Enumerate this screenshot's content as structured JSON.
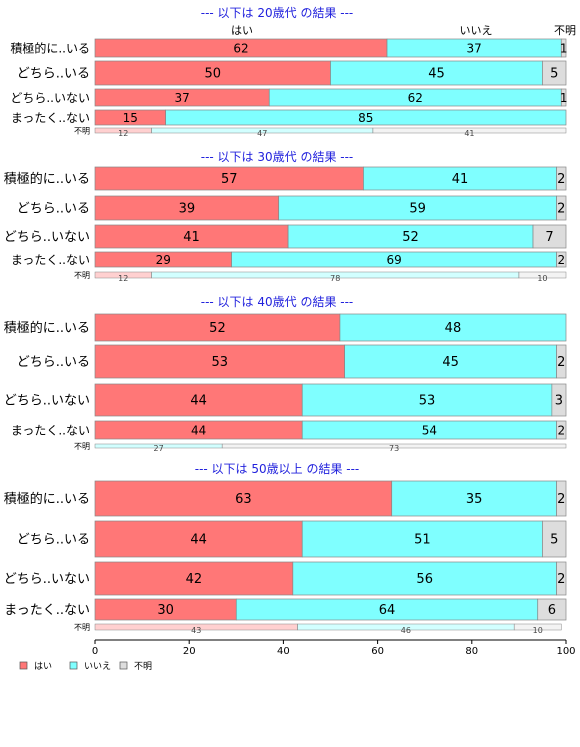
{
  "colors": {
    "yes": "#ff7777",
    "no": "#7fffff",
    "unknown": "#dddddd",
    "title": "#2222dd",
    "border": "#888888"
  },
  "header_labels": {
    "yes": "はい",
    "no": "いいえ",
    "unknown": "不明"
  },
  "legend": [
    {
      "label": "はい",
      "key": "yes"
    },
    {
      "label": "いいえ",
      "key": "no"
    },
    {
      "label": "不明",
      "key": "unknown"
    }
  ],
  "chart_data": {
    "type": "bar",
    "orientation": "horizontal-stacked-percent",
    "series_names": [
      "はい",
      "いいえ",
      "不明"
    ],
    "xlim": [
      0,
      100
    ],
    "xticks": [
      "0",
      "20",
      "40",
      "60",
      "80",
      "100"
    ],
    "panels": [
      {
        "title": "--- 以下は 20歳代 の結果 ---",
        "categories": [
          "積極的に..いる",
          "どちら..いる",
          "どちら..いない",
          "まったく..ない"
        ],
        "rows": [
          [
            62,
            37,
            1
          ],
          [
            50,
            45,
            5
          ],
          [
            37,
            62,
            1
          ],
          [
            15,
            85,
            0
          ]
        ],
        "row_labels": [
          [
            "62",
            "37",
            "1"
          ],
          [
            "50",
            "45",
            "5"
          ],
          [
            "37",
            "62",
            "1"
          ],
          [
            "15",
            "85",
            ""
          ]
        ],
        "unknown_label": "不明",
        "unknown_row": [
          12,
          47,
          41
        ]
      },
      {
        "title": "--- 以下は 30歳代 の結果 ---",
        "categories": [
          "積極的に..いる",
          "どちら..いる",
          "どちら..いない",
          "まったく..ない"
        ],
        "rows": [
          [
            57,
            41,
            2
          ],
          [
            39,
            59,
            2
          ],
          [
            41,
            52,
            7
          ],
          [
            29,
            69,
            2
          ]
        ],
        "row_labels": [
          [
            "57",
            "41",
            "2"
          ],
          [
            "39",
            "59",
            "2"
          ],
          [
            "41",
            "52",
            "7"
          ],
          [
            "29",
            "69",
            "2"
          ]
        ],
        "unknown_label": "不明",
        "unknown_row": [
          12,
          78,
          10
        ]
      },
      {
        "title": "--- 以下は 40歳代 の結果 ---",
        "categories": [
          "積極的に..いる",
          "どちら..いる",
          "どちら..いない",
          "まったく..ない"
        ],
        "rows": [
          [
            52,
            48,
            0
          ],
          [
            53,
            45,
            2
          ],
          [
            44,
            53,
            3
          ],
          [
            44,
            54,
            2
          ]
        ],
        "row_labels": [
          [
            "52",
            "48",
            ""
          ],
          [
            "53",
            "45",
            "2"
          ],
          [
            "44",
            "53",
            "3"
          ],
          [
            "44",
            "54",
            "2"
          ]
        ],
        "unknown_label": "不明",
        "unknown_row": [
          0,
          27,
          73
        ]
      },
      {
        "title": "--- 以下は 50歳以上 の結果 ---",
        "categories": [
          "積極的に..いる",
          "どちら..いる",
          "どちら..いない",
          "まったく..ない"
        ],
        "rows": [
          [
            63,
            35,
            2
          ],
          [
            44,
            51,
            5
          ],
          [
            42,
            56,
            2
          ],
          [
            30,
            64,
            6
          ]
        ],
        "row_labels": [
          [
            "63",
            "35",
            "2"
          ],
          [
            "44",
            "51",
            "5"
          ],
          [
            "42",
            "56",
            "2"
          ],
          [
            "30",
            "64",
            "6"
          ]
        ],
        "unknown_label": "不明",
        "unknown_row": [
          43,
          46,
          10
        ]
      }
    ]
  }
}
